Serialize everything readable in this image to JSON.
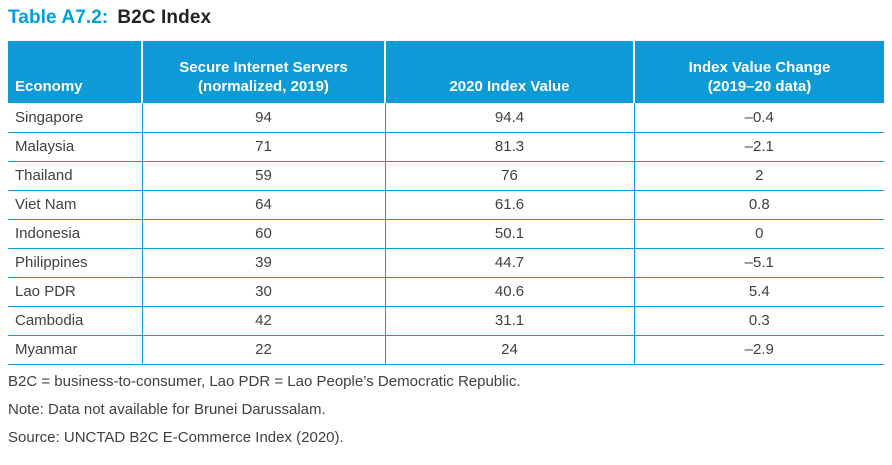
{
  "title": {
    "prefix": "Table A7.2:",
    "text": "B2C Index"
  },
  "colors": {
    "accent_blue": "#0E9AD7",
    "title_blue": "#00A0DC",
    "header_text": "#FFFFFF",
    "body_text": "#414042"
  },
  "table": {
    "columns": [
      {
        "id": "economy",
        "label": "Economy"
      },
      {
        "id": "servers",
        "label": "Secure Internet Servers\n(normalized, 2019)"
      },
      {
        "id": "index2020",
        "label": "2020 Index Value"
      },
      {
        "id": "change",
        "label": "Index Value Change\n(2019–20 data)"
      }
    ],
    "rows": [
      {
        "economy": "Singapore",
        "servers": "94",
        "index2020": "94.4",
        "change": "–0.4"
      },
      {
        "economy": "Malaysia",
        "servers": "71",
        "index2020": "81.3",
        "change": "–2.1"
      },
      {
        "economy": "Thailand",
        "servers": "59",
        "index2020": "76",
        "change": "2"
      },
      {
        "economy": "Viet Nam",
        "servers": "64",
        "index2020": "61.6",
        "change": "0.8"
      },
      {
        "economy": "Indonesia",
        "servers": "60",
        "index2020": "50.1",
        "change": "0"
      },
      {
        "economy": "Philippines",
        "servers": "39",
        "index2020": "44.7",
        "change": "–5.1"
      },
      {
        "economy": "Lao PDR",
        "servers": "30",
        "index2020": "40.6",
        "change": "5.4"
      },
      {
        "economy": "Cambodia",
        "servers": "42",
        "index2020": "31.1",
        "change": "0.3"
      },
      {
        "economy": "Myanmar",
        "servers": "22",
        "index2020": "24",
        "change": "–2.9"
      }
    ]
  },
  "notes": [
    "B2C = business-to-consumer, Lao PDR = Lao People’s Democratic Republic.",
    "Note: Data not available for Brunei Darussalam.",
    "Source: UNCTAD B2C E-Commerce Index (2020)."
  ]
}
